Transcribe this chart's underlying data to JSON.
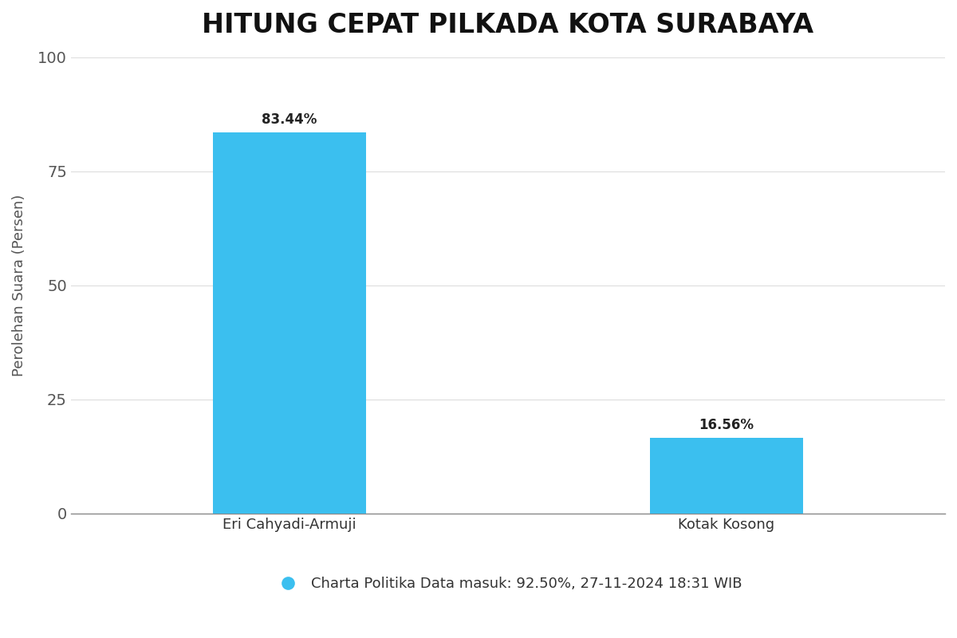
{
  "title": "HITUNG CEPAT PILKADA KOTA SURABAYA",
  "categories": [
    "Eri Cahyadi-Armuji",
    "Kotak Kosong"
  ],
  "values": [
    83.44,
    16.56
  ],
  "bar_color": "#3BBFEF",
  "ylabel": "Perolehan Suara (Persen)",
  "ylim": [
    0,
    100
  ],
  "yticks": [
    0,
    25,
    50,
    75,
    100
  ],
  "bar_labels": [
    "83.44%",
    "16.56%"
  ],
  "legend_text": "Charta Politika Data masuk: 92.50%, 27-11-2024 18:31 WIB",
  "legend_marker_color": "#3BBFEF",
  "background_color": "#ffffff",
  "title_fontsize": 24,
  "label_fontsize": 13,
  "tick_fontsize": 14,
  "bar_label_fontsize": 12,
  "legend_fontsize": 13,
  "bar_width": 0.35
}
